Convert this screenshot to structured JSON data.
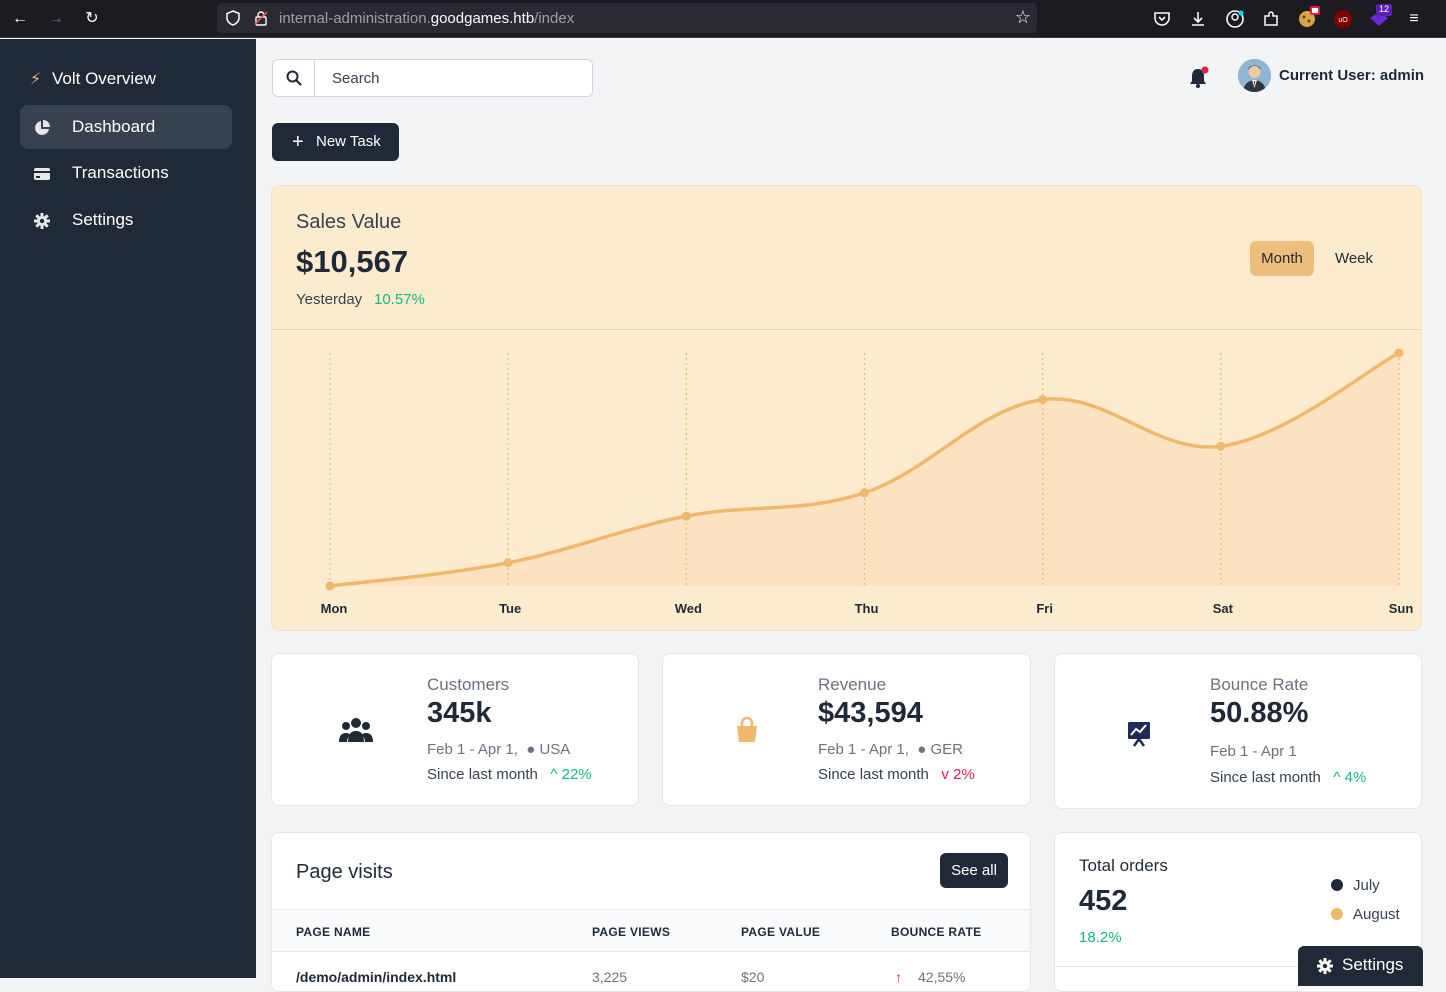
{
  "browser": {
    "url_prefix": "internal-administration.",
    "url_domain": "goodgames.htb",
    "url_path": "/index",
    "extension_badge": "12"
  },
  "sidebar": {
    "brand": "Volt Overview",
    "items": [
      {
        "label": "Dashboard",
        "icon": "chart-pie-icon",
        "active": true
      },
      {
        "label": "Transactions",
        "icon": "credit-card-icon",
        "active": false
      },
      {
        "label": "Settings",
        "icon": "gear-icon",
        "active": false
      }
    ]
  },
  "topbar": {
    "search_placeholder": "Search",
    "user_label": "Current User: admin"
  },
  "new_task_label": "New Task",
  "sales": {
    "title": "Sales Value",
    "value": "$10,567",
    "period_label": "Yesterday",
    "change": "10.57%",
    "toggle_month": "Month",
    "toggle_week": "Week"
  },
  "chart_data": {
    "type": "area",
    "categories": [
      "Mon",
      "Tue",
      "Wed",
      "Thu",
      "Fri",
      "Sat",
      "Sun"
    ],
    "series": [
      {
        "values": [
          0,
          10,
          30,
          40,
          80,
          60,
          100
        ]
      }
    ],
    "ylim": [
      0,
      100
    ],
    "grid": "vertical dotted",
    "color": "#f0b86a"
  },
  "stats": [
    {
      "title": "Customers",
      "value": "345k",
      "range": "Feb 1 - Apr 1,",
      "region": "USA",
      "since": "Since last month",
      "change": "22%",
      "direction": "up",
      "icon": "users-icon",
      "icon_bg": "#c2c5cc"
    },
    {
      "title": "Revenue",
      "value": "$43,594",
      "range": "Feb 1 - Apr 1,",
      "region": "GER",
      "since": "Since last month",
      "change": "2%",
      "direction": "down",
      "icon": "shopping-bag-icon",
      "icon_bg": "#fde9cf"
    },
    {
      "title": "Bounce Rate",
      "value": "50.88%",
      "range": "Feb 1 - Apr 1",
      "region": "",
      "since": "Since last month",
      "change": "4%",
      "direction": "up",
      "icon": "presentation-chart-icon",
      "icon_bg": "#c9c8da"
    }
  ],
  "visits": {
    "title": "Page visits",
    "see_all": "See all",
    "columns": [
      "PAGE NAME",
      "PAGE VIEWS",
      "PAGE VALUE",
      "BOUNCE RATE"
    ],
    "rows": [
      [
        "/demo/admin/index.html",
        "3,225",
        "$20",
        "42,55%"
      ]
    ]
  },
  "orders": {
    "title": "Total orders",
    "value": "452",
    "change": "18.2%",
    "legend": [
      {
        "label": "July",
        "color": "#1f2937"
      },
      {
        "label": "August",
        "color": "#f0b86a"
      }
    ]
  },
  "floating_settings": "Settings"
}
